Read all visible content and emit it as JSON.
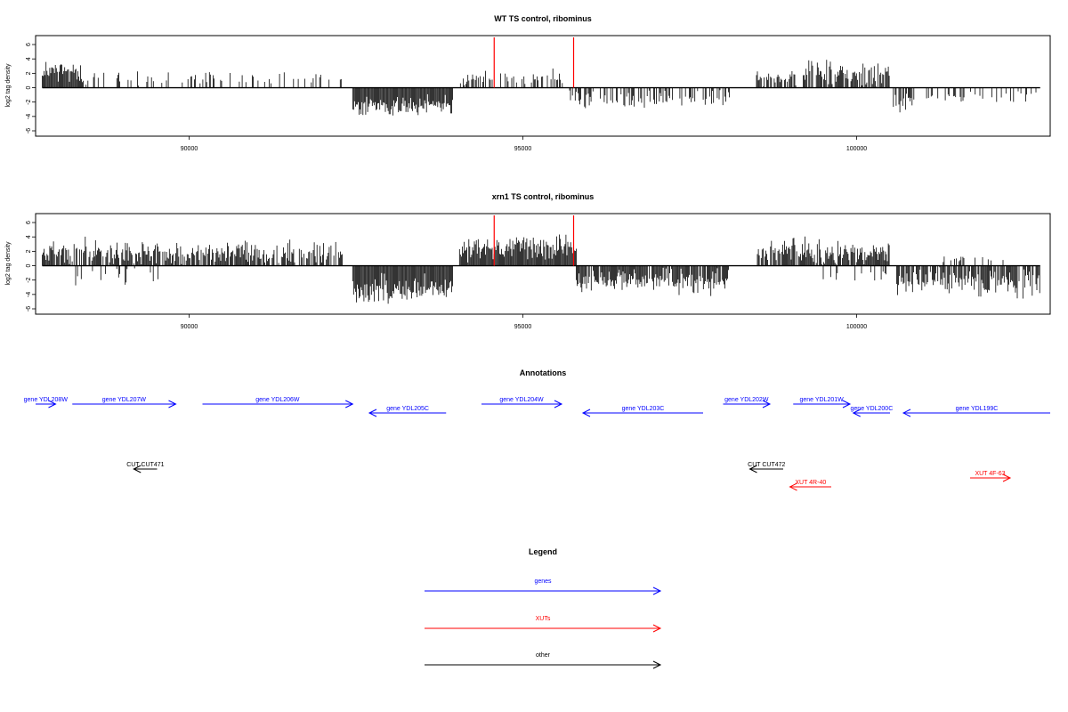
{
  "colors": {
    "gene": "#0000ff",
    "xut": "#ff0000",
    "other": "#000000",
    "marker": "#ff0000",
    "bar": "#000000"
  },
  "chart_data": [
    {
      "type": "bar",
      "title": "WT TS control, ribominus",
      "ylabel": "log2 tag density",
      "xlim": [
        87700,
        102900
      ],
      "ylim": [
        -6,
        6.5
      ],
      "x_ticks": [
        90000,
        95000,
        100000
      ],
      "x_tick_labels": [
        "90000",
        "95000",
        "100000"
      ],
      "y_ticks": [
        -6,
        -4,
        -2,
        0,
        2,
        4,
        6
      ],
      "y_tick_labels": [
        "-6",
        "-4",
        "-2",
        "0",
        "2",
        "4",
        "6"
      ],
      "marker_lines": [
        94570,
        95760
      ],
      "segments": [
        {
          "from": 87800,
          "to": 88400,
          "sign": 1,
          "density": 1.0,
          "mean": 2.2,
          "spread": 1.3
        },
        {
          "from": 88400,
          "to": 92300,
          "sign": 1,
          "density": 0.25,
          "mean": 1.2,
          "spread": 0.9
        },
        {
          "from": 92450,
          "to": 93950,
          "sign": -1,
          "density": 1.0,
          "mean": 2.6,
          "spread": 1.0
        },
        {
          "from": 94050,
          "to": 95600,
          "sign": 1,
          "density": 0.35,
          "mean": 1.3,
          "spread": 0.9
        },
        {
          "from": 95700,
          "to": 98100,
          "sign": -1,
          "density": 0.45,
          "mean": 1.6,
          "spread": 1.0
        },
        {
          "from": 98500,
          "to": 99100,
          "sign": 1,
          "density": 0.6,
          "mean": 1.5,
          "spread": 1.0
        },
        {
          "from": 99200,
          "to": 100500,
          "sign": 1,
          "density": 0.8,
          "mean": 2.0,
          "spread": 1.4
        },
        {
          "from": 100550,
          "to": 100900,
          "sign": -1,
          "density": 0.6,
          "mean": 2.0,
          "spread": 1.2
        },
        {
          "from": 100950,
          "to": 102750,
          "sign": -1,
          "density": 0.25,
          "mean": 1.2,
          "spread": 0.8
        }
      ]
    },
    {
      "type": "bar",
      "title": "xrn1 TS control, ribominus",
      "ylabel": "log2 tag density",
      "xlim": [
        87700,
        102900
      ],
      "ylim": [
        -6,
        6.5
      ],
      "x_ticks": [
        90000,
        95000,
        100000
      ],
      "x_tick_labels": [
        "90000",
        "95000",
        "100000"
      ],
      "y_ticks": [
        -6,
        -4,
        -2,
        0,
        2,
        4,
        6
      ],
      "y_tick_labels": [
        "-6",
        "-4",
        "-2",
        "0",
        "2",
        "4",
        "6"
      ],
      "marker_lines": [
        94570,
        95760
      ],
      "segments": [
        {
          "from": 87800,
          "to": 92300,
          "sign": 1,
          "density": 0.8,
          "mean": 1.8,
          "spread": 1.3
        },
        {
          "from": 88300,
          "to": 89600,
          "sign": -1,
          "density": 0.12,
          "mean": 1.5,
          "spread": 1.0
        },
        {
          "from": 92450,
          "to": 93950,
          "sign": -1,
          "density": 1.0,
          "mean": 3.2,
          "spread": 1.3
        },
        {
          "from": 94050,
          "to": 95800,
          "sign": 1,
          "density": 1.0,
          "mean": 2.6,
          "spread": 1.3
        },
        {
          "from": 95800,
          "to": 98100,
          "sign": -1,
          "density": 0.9,
          "mean": 2.2,
          "spread": 1.3
        },
        {
          "from": 98500,
          "to": 100500,
          "sign": 1,
          "density": 0.85,
          "mean": 1.8,
          "spread": 1.4
        },
        {
          "from": 99500,
          "to": 100500,
          "sign": -1,
          "density": 0.2,
          "mean": 1.2,
          "spread": 1.0
        },
        {
          "from": 100600,
          "to": 102750,
          "sign": -1,
          "density": 0.8,
          "mean": 2.2,
          "spread": 1.4
        },
        {
          "from": 101200,
          "to": 102300,
          "sign": 1,
          "density": 0.2,
          "mean": 0.8,
          "spread": 0.5
        }
      ]
    }
  ],
  "annotations": {
    "title": "Annotations",
    "items": [
      {
        "label": "gene YDL208W",
        "kind": "gene",
        "start": 87700,
        "end": 88000,
        "dir": "right",
        "row": 0
      },
      {
        "label": "gene YDL207W",
        "kind": "gene",
        "start": 88250,
        "end": 89800,
        "dir": "right",
        "row": 0
      },
      {
        "label": "gene YDL206W",
        "kind": "gene",
        "start": 90200,
        "end": 92450,
        "dir": "right",
        "row": 0
      },
      {
        "label": "gene YDL205C",
        "kind": "gene",
        "start": 92700,
        "end": 93850,
        "dir": "left",
        "row": 1
      },
      {
        "label": "gene YDL204W",
        "kind": "gene",
        "start": 94380,
        "end": 95580,
        "dir": "right",
        "row": 0
      },
      {
        "label": "gene YDL203C",
        "kind": "gene",
        "start": 95900,
        "end": 97700,
        "dir": "left",
        "row": 1
      },
      {
        "label": "gene YDL202W",
        "kind": "gene",
        "start": 98000,
        "end": 98700,
        "dir": "right",
        "row": 0
      },
      {
        "label": "gene YDL201W",
        "kind": "gene",
        "start": 99050,
        "end": 99900,
        "dir": "right",
        "row": 0
      },
      {
        "label": "gene YDL200C",
        "kind": "gene",
        "start": 99950,
        "end": 100500,
        "dir": "left",
        "row": 1
      },
      {
        "label": "gene YDL199C",
        "kind": "gene",
        "start": 100700,
        "end": 103000,
        "dir": "left",
        "row": 1
      },
      {
        "label": "CUT CUT471",
        "kind": "other",
        "start": 89170,
        "end": 89520,
        "dir": "left",
        "row": 2
      },
      {
        "label": "CUT CUT472",
        "kind": "other",
        "start": 98400,
        "end": 98900,
        "dir": "left",
        "row": 2
      },
      {
        "label": "XUT 4R-40",
        "kind": "xut",
        "start": 99000,
        "end": 99620,
        "dir": "left",
        "row": 3
      },
      {
        "label": "XUT 4F-63",
        "kind": "xut",
        "start": 101700,
        "end": 102300,
        "dir": "right",
        "row": 4
      }
    ]
  },
  "legend": {
    "title": "Legend",
    "items": [
      {
        "label": "genes",
        "kind": "gene"
      },
      {
        "label": "XUTs",
        "kind": "xut"
      },
      {
        "label": "other",
        "kind": "other"
      }
    ]
  }
}
